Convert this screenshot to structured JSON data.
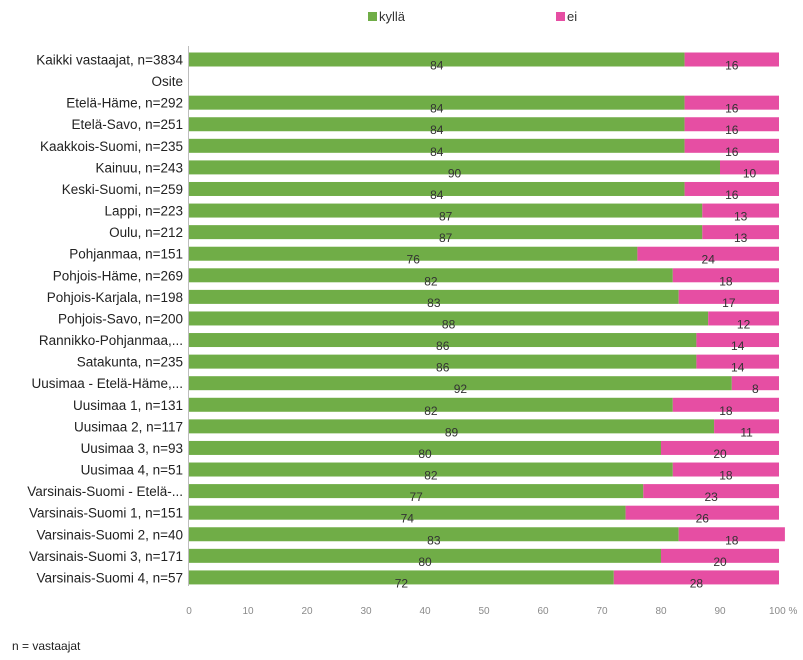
{
  "chart_data": {
    "type": "bar",
    "stacked": true,
    "orientation": "horizontal",
    "categories": [
      "Kaikki vastaajat, n=3834",
      "Osite",
      "Etelä-Häme, n=292",
      "Etelä-Savo, n=251",
      "Kaakkois-Suomi, n=235",
      "Kainuu, n=243",
      "Keski-Suomi, n=259",
      "Lappi, n=223",
      "Oulu, n=212",
      "Pohjanmaa, n=151",
      "Pohjois-Häme, n=269",
      "Pohjois-Karjala, n=198",
      "Pohjois-Savo, n=200",
      "Rannikko-Pohjanmaa,...",
      "Satakunta, n=235",
      "Uusimaa - Etelä-Häme,...",
      "Uusimaa 1, n=131",
      "Uusimaa 2, n=117",
      "Uusimaa 3, n=93",
      "Uusimaa 4, n=51",
      "Varsinais-Suomi - Etelä-...",
      "Varsinais-Suomi 1, n=151",
      "Varsinais-Suomi 2, n=40",
      "Varsinais-Suomi 3, n=171",
      "Varsinais-Suomi 4, n=57"
    ],
    "series": [
      {
        "name": "kyllä",
        "color": "#70ad47",
        "values": [
          84,
          null,
          84,
          84,
          84,
          90,
          84,
          87,
          87,
          76,
          82,
          83,
          88,
          86,
          86,
          92,
          82,
          89,
          80,
          82,
          77,
          74,
          83,
          80,
          72
        ]
      },
      {
        "name": "ei",
        "color": "#e64ea3",
        "values": [
          16,
          null,
          16,
          16,
          16,
          10,
          16,
          13,
          13,
          24,
          18,
          17,
          12,
          14,
          14,
          8,
          18,
          11,
          20,
          18,
          23,
          26,
          18,
          20,
          28
        ]
      }
    ],
    "xlim": [
      0,
      100
    ],
    "xticks": [
      "0",
      "10",
      "20",
      "30",
      "40",
      "50",
      "60",
      "70",
      "80",
      "90",
      "100 %"
    ],
    "legend": "top-center",
    "grid": false,
    "footnote": "n = vastaajat"
  }
}
